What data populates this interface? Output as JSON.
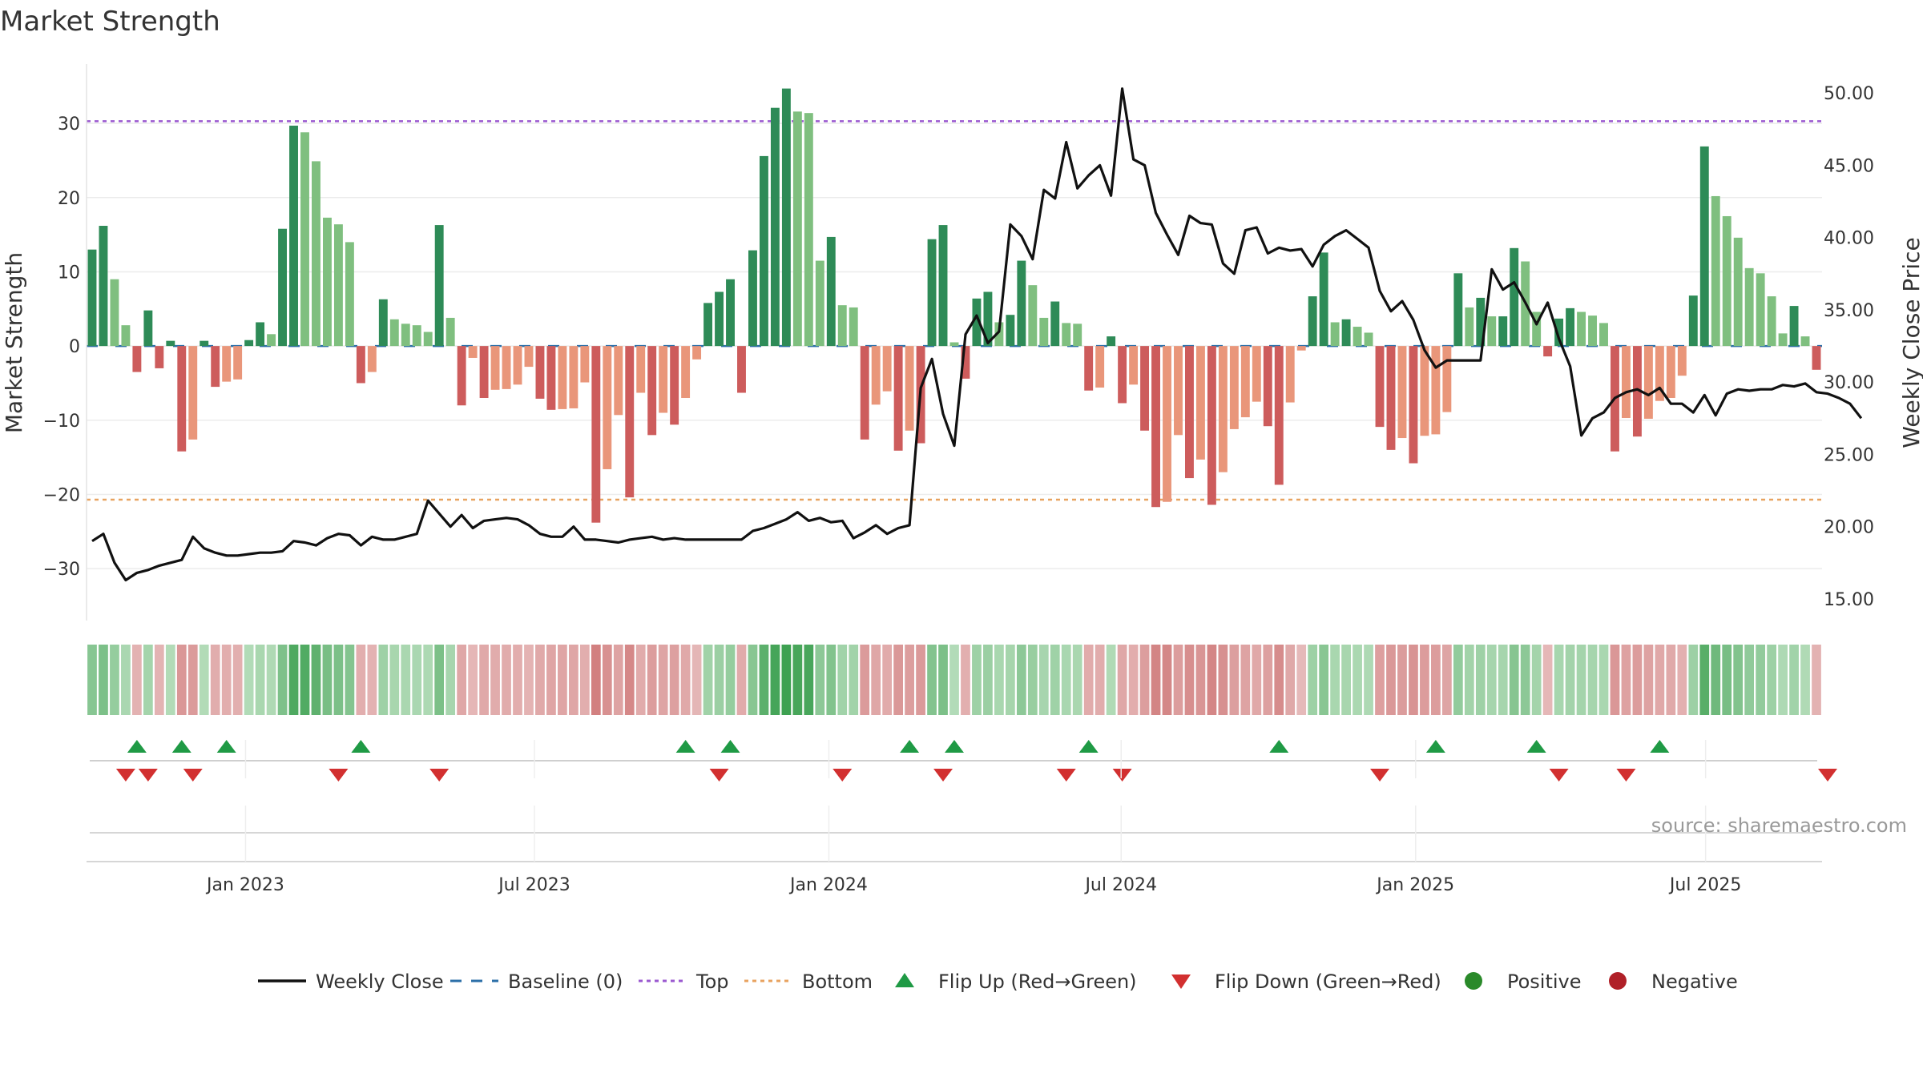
{
  "chart_data": {
    "type": "bar",
    "title": "Market Strength",
    "ylabel": "Market Strength",
    "y2label": "Weekly Close Price",
    "ylim": [
      -37,
      38
    ],
    "y2lim": [
      13.5,
      52
    ],
    "yticks": [
      -30,
      -20,
      -10,
      0,
      10,
      20,
      30
    ],
    "yticklabels": [
      "−30",
      "−20",
      "−10",
      "0",
      "10",
      "20",
      "30"
    ],
    "y2ticks": [
      15,
      20,
      25,
      30,
      35,
      40,
      45,
      50
    ],
    "y2ticklabels": [
      "15.00",
      "20.00",
      "25.00",
      "30.00",
      "35.00",
      "40.00",
      "45.00",
      "50.00"
    ],
    "xticks": [
      {
        "label": "Jan 2023",
        "week": 14.2
      },
      {
        "label": "Jul 2023",
        "week": 40.0
      },
      {
        "label": "Jan 2024",
        "week": 66.3
      },
      {
        "label": "Jul 2024",
        "week": 92.4
      },
      {
        "label": "Jan 2025",
        "week": 118.7
      },
      {
        "label": "Jul 2025",
        "week": 144.6
      }
    ],
    "reference_lines": {
      "top": 30.3,
      "bottom": -20.7,
      "baseline": 0
    },
    "strength": [
      13,
      16.2,
      9,
      2.8,
      -3.5,
      4.8,
      -3,
      0.7,
      -14.2,
      -12.6,
      0.7,
      -5.5,
      -4.8,
      -4.5,
      0.8,
      3.2,
      1.6,
      15.8,
      29.7,
      28.8,
      24.9,
      17.3,
      16.4,
      14,
      -5,
      -3.5,
      6.3,
      3.6,
      3,
      2.8,
      1.9,
      16.3,
      3.8,
      -8,
      -1.6,
      -7,
      -5.9,
      -5.8,
      -5.2,
      -2.8,
      -7.1,
      -8.6,
      -8.5,
      -8.4,
      -4.9,
      -23.8,
      -16.6,
      -9.3,
      -20.4,
      -6.3,
      -12,
      -9,
      -10.6,
      -7,
      -1.8,
      5.8,
      7.3,
      9,
      -6.3,
      12.9,
      25.6,
      32.1,
      34.7,
      31.6,
      31.4,
      11.5,
      14.7,
      5.5,
      5.2,
      -12.6,
      -7.9,
      -6.1,
      -14.1,
      -11.4,
      -13.1,
      14.4,
      16.3,
      0.5,
      -4.4,
      6.4,
      7.3,
      3.2,
      4.2,
      11.5,
      8.2,
      3.8,
      6,
      3.1,
      3,
      -6,
      -5.6,
      1.3,
      -7.7,
      -5.2,
      -11.4,
      -21.7,
      -21,
      -12,
      -17.8,
      -15.3,
      -21.4,
      -17,
      -11.2,
      -9.6,
      -7.5,
      -10.8,
      -18.7,
      -7.6,
      -0.6,
      6.7,
      12.6,
      3.2,
      3.6,
      2.6,
      1.8,
      -10.9,
      -14,
      -12.4,
      -15.8,
      -12.1,
      -11.9,
      -8.9,
      9.8,
      5.2,
      6.5,
      4,
      4,
      13.2,
      11.4,
      4.6,
      -1.4,
      3.7,
      5.1,
      4.6,
      4.1,
      3.1,
      -14.2,
      -9.7,
      -12.2,
      -9.8,
      -7.4,
      -7,
      -4,
      6.8,
      26.9,
      20.2,
      17.5,
      14.6,
      10.5,
      9.8,
      6.7,
      1.7,
      5.4,
      1.3,
      -3.2
    ],
    "close": [
      19,
      19.5,
      17.5,
      16.3,
      16.8,
      17,
      17.3,
      17.5,
      17.7,
      19.3,
      18.5,
      18.2,
      18,
      18,
      18.1,
      18.2,
      18.2,
      18.3,
      19,
      18.9,
      18.7,
      19.2,
      19.5,
      19.4,
      18.7,
      19.3,
      19.1,
      19.1,
      19.3,
      19.5,
      21.8,
      20.9,
      20,
      20.8,
      19.9,
      20.4,
      20.5,
      20.6,
      20.5,
      20.1,
      19.5,
      19.3,
      19.3,
      20,
      19.1,
      19.1,
      19,
      18.9,
      19.1,
      19.2,
      19.3,
      19.1,
      19.2,
      19.1,
      19.1,
      19.1,
      19.1,
      19.1,
      19.1,
      19.7,
      19.9,
      20.2,
      20.5,
      21,
      20.4,
      20.6,
      20.3,
      20.4,
      19.2,
      19.6,
      20.1,
      19.5,
      19.9,
      20.1,
      29.6,
      31.6,
      27.8,
      25.6,
      33.3,
      34.6,
      32.7,
      33.5,
      40.9,
      40.1,
      38.5,
      43.3,
      42.7,
      46.6,
      43.4,
      44.3,
      45,
      42.9,
      50.3,
      45.4,
      45,
      41.7,
      40.2,
      38.8,
      41.5,
      41,
      40.9,
      38.2,
      37.5,
      40.5,
      40.7,
      38.9,
      39.3,
      39.1,
      39.2,
      38,
      39.5,
      40.1,
      40.5,
      39.9,
      39.3,
      36.3,
      34.9,
      35.6,
      34.3,
      32.2,
      31,
      31.5,
      31.5,
      31.5,
      31.5,
      37.8,
      36.4,
      36.9,
      35.5,
      34,
      35.5,
      33,
      31.1,
      26.3,
      27.5,
      27.9,
      28.9,
      29.3,
      29.5,
      29.1,
      29.6,
      28.5,
      28.5,
      27.9,
      29.1,
      27.7,
      29.2,
      29.5,
      29.4,
      29.5,
      29.5,
      29.8,
      29.7,
      29.9,
      29.3,
      29.2,
      28.9,
      28.5,
      27.5
    ],
    "flip_up_weeks": [
      4.5,
      8.5,
      12.5,
      24.5,
      53.5,
      57.5,
      73.5,
      77.5,
      89.5,
      106.5,
      120.5,
      129.5,
      140.5
    ],
    "flip_down_weeks": [
      3.5,
      5.5,
      9.5,
      22.5,
      31.5,
      56.5,
      67.5,
      76.5,
      87.5,
      92.5,
      115.5,
      131.5,
      137.5,
      155.5
    ],
    "legend": [
      {
        "key": "weekly_close",
        "label": "Weekly Close"
      },
      {
        "key": "baseline",
        "label": "Baseline (0)"
      },
      {
        "key": "top",
        "label": "Top"
      },
      {
        "key": "bottom",
        "label": "Bottom"
      },
      {
        "key": "flip_up",
        "label": "Flip Up (Red→Green)"
      },
      {
        "key": "flip_down",
        "label": "Flip Down (Green→Red)"
      },
      {
        "key": "positive",
        "label": "Positive"
      },
      {
        "key": "negative",
        "label": "Negative"
      }
    ],
    "legend_placement": "bottom-center",
    "source": "source: sharemaestro.com"
  },
  "colors": {
    "close_line": "#111111",
    "baseline": "#2c6fa8",
    "top": "#9b59d0",
    "bottom": "#e8a360",
    "flip_up": "#1f9a45",
    "flip_down": "#d23030",
    "positive": "#2a8a2a",
    "negative": "#b02028",
    "pos_strong": "#2e8b57",
    "pos_weak": "#7fbf7f",
    "neg_strong": "#cd5c5c",
    "neg_weak": "#e9967a"
  }
}
